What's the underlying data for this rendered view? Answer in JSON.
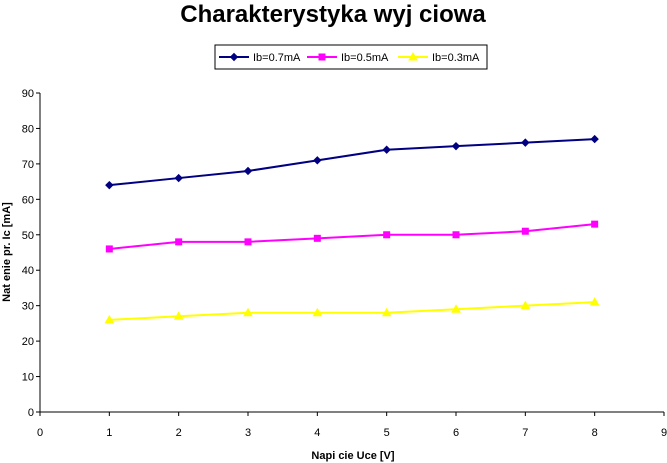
{
  "chart_data": {
    "type": "line",
    "title": "Charakterystyka wyj  ciowa",
    "xlabel": "Napi  cie Uce [V]",
    "ylabel": "Nat   enie pr. Ic  [mA]",
    "xlim": [
      0,
      9
    ],
    "ylim": [
      0,
      90
    ],
    "x_ticks": [
      0,
      1,
      2,
      3,
      4,
      5,
      6,
      7,
      8,
      9
    ],
    "y_ticks": [
      0,
      10,
      20,
      30,
      40,
      50,
      60,
      70,
      80,
      90
    ],
    "x": [
      1,
      2,
      3,
      4,
      5,
      6,
      7,
      8
    ],
    "legend_position": "top",
    "grid": false,
    "series": [
      {
        "name": "Ib=0.7mA",
        "color": "#000080",
        "marker": "diamond",
        "values": [
          64,
          66,
          68,
          71,
          74,
          75,
          76,
          77
        ]
      },
      {
        "name": "Ib=0.5mA",
        "color": "#ff00ff",
        "marker": "square",
        "values": [
          46,
          48,
          48,
          49,
          50,
          50,
          51,
          53
        ]
      },
      {
        "name": "Ib=0.3mA",
        "color": "#ffff00",
        "marker": "triangle",
        "values": [
          26,
          27,
          28,
          28,
          28,
          29,
          30,
          31
        ]
      }
    ]
  }
}
